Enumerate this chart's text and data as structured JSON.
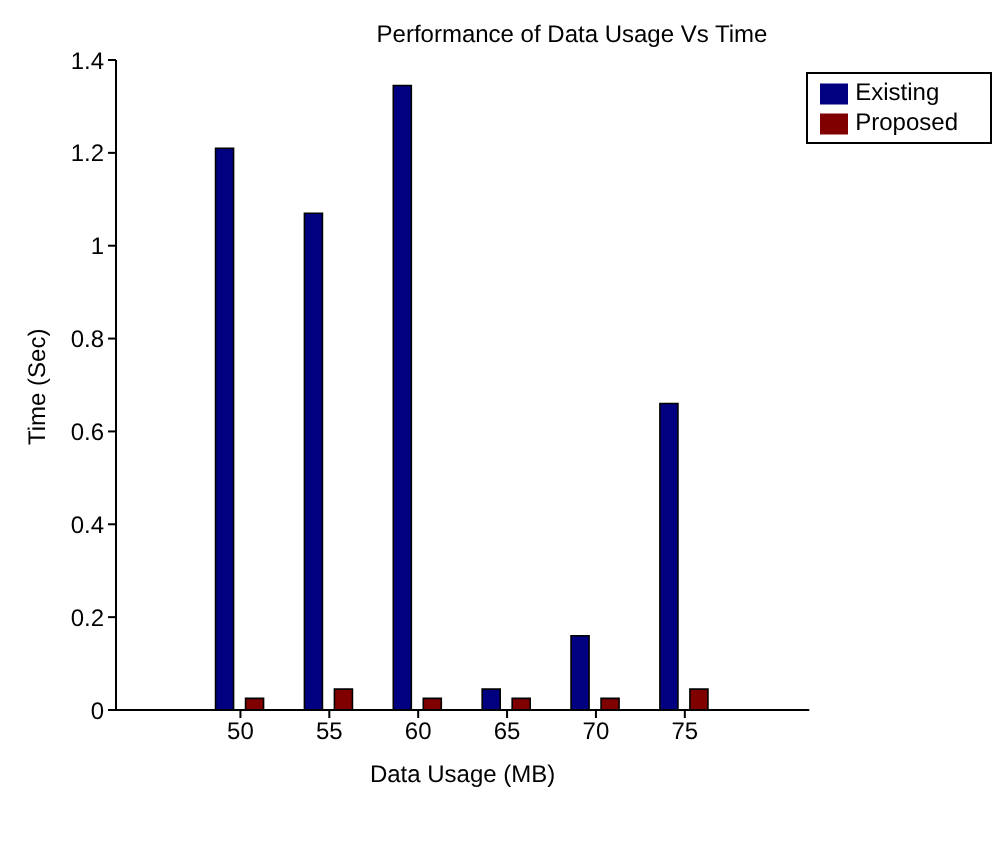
{
  "chart_data": {
    "type": "bar",
    "title": "Performance of Data Usage Vs Time",
    "xlabel": "Data Usage (MB)",
    "ylabel": "Time (Sec)",
    "categories": [
      "50",
      "55",
      "60",
      "65",
      "70",
      "75"
    ],
    "series": [
      {
        "name": "Existing",
        "color": "#000080",
        "values": [
          1.21,
          1.07,
          1.345,
          0.045,
          0.16,
          0.66
        ]
      },
      {
        "name": "Proposed",
        "color": "#800000",
        "values": [
          0.025,
          0.045,
          0.025,
          0.025,
          0.025,
          0.045
        ]
      }
    ],
    "ylim": [
      0,
      1.4
    ],
    "yticks": [
      0,
      0.2,
      0.4,
      0.6,
      0.8,
      1,
      1.2,
      1.4
    ],
    "grid": false,
    "legend": "top right"
  }
}
